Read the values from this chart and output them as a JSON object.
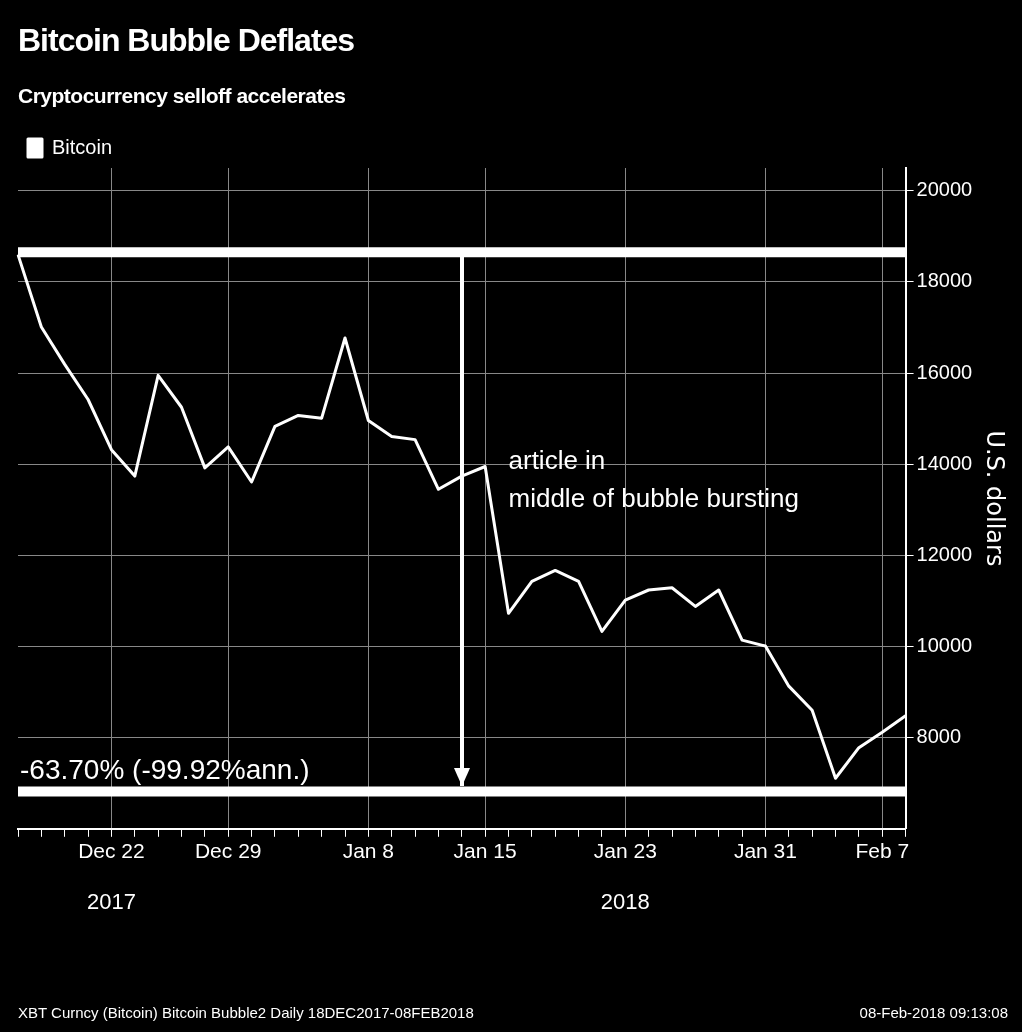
{
  "chart_data": {
    "type": "line",
    "title": "Bitcoin Bubble Deflates",
    "subtitle": "Cryptocurrency selloff accelerates",
    "ylabel": "U.S. dollars",
    "categories": [
      null,
      null,
      null,
      null,
      "Dec 22",
      null,
      null,
      null,
      null,
      "Dec 29",
      null,
      null,
      null,
      null,
      null,
      "Jan 8",
      null,
      null,
      null,
      null,
      "Jan 15",
      null,
      null,
      null,
      null,
      null,
      "Jan 23",
      null,
      null,
      null,
      null,
      null,
      "Jan 31",
      null,
      null,
      null,
      null,
      "Feb 7",
      null
    ],
    "series": [
      {
        "name": "Bitcoin",
        "color": "#ffffff",
        "values": [
          18600,
          17010,
          16190,
          15420,
          14320,
          13740,
          15950,
          15250,
          13920,
          14380,
          13610,
          14830,
          15070,
          15010,
          16770,
          14960,
          14610,
          14540,
          13450,
          13740,
          13950,
          10730,
          11430,
          11670,
          11430,
          10330,
          11020,
          11240,
          11290,
          10880,
          11240,
          10140,
          10010,
          9130,
          8600,
          7110,
          7780,
          8120,
          8480
        ]
      }
    ],
    "ylim": [
      6000,
      20500
    ],
    "yticks": [
      8000,
      10000,
      12000,
      14000,
      16000,
      18000,
      20000
    ],
    "ref_lines": [
      {
        "axis": "y",
        "value": 18650,
        "color": "#ffffff"
      },
      {
        "axis": "y",
        "value": 6820,
        "color": "#ffffff"
      }
    ],
    "annotations": [
      "article in\nmiddle of bubble bursting",
      "-63.70% (-99.92%ann.)",
      "2017",
      "2018",
      "XBT Curncy (Bitcoin) Bitcoin Bubble2  Daily 18DEC2017-08FEB2018",
      "08-Feb-2018 09:13:08"
    ],
    "grid": true,
    "legend": "top left",
    "marker": "none",
    "line_style": "solid"
  }
}
